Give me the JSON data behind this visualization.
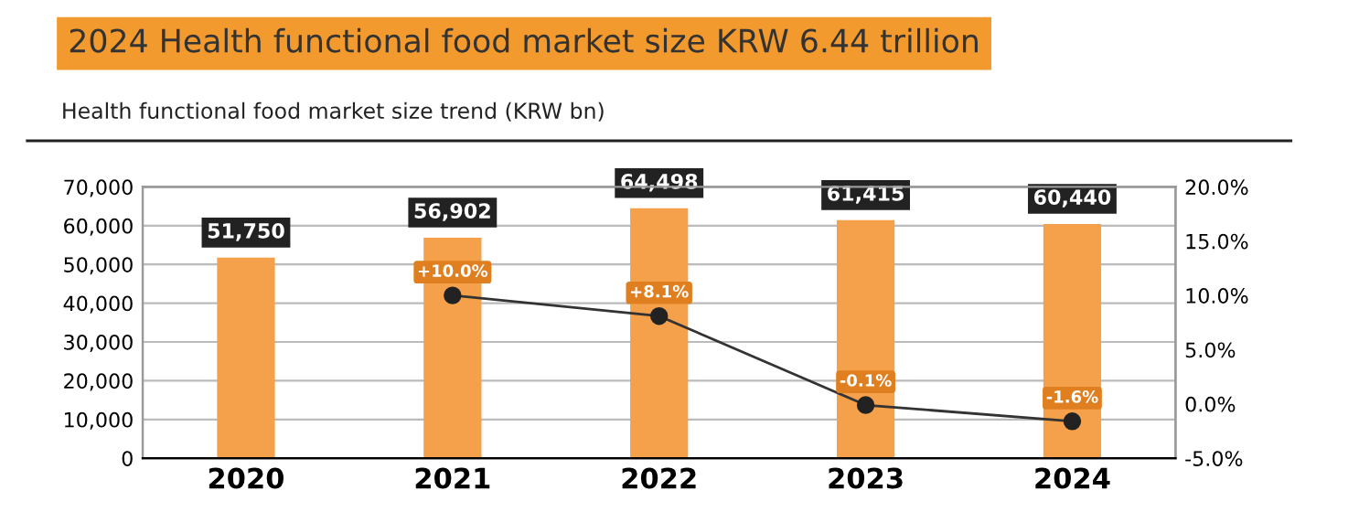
{
  "chart_data": {
    "type": "bar",
    "title": "2024 Health functional food market size KRW 6.44 trillion",
    "subtitle": "Health functional food market size trend (KRW bn)",
    "categories": [
      "2020",
      "2021",
      "2022",
      "2023",
      "2024"
    ],
    "series": [
      {
        "color": "#f5a04a",
        "values": [
          51750,
          56902,
          64498,
          61415,
          60440
        ],
        "value_labels": [
          "51,750",
          "56,902",
          "64,498",
          "61,415",
          "60,440"
        ]
      },
      {
        "type": "line",
        "axis": "y2",
        "color": "#333333",
        "marker": "circle",
        "values": [
          null,
          10.0,
          8.1,
          -0.1,
          -1.6
        ],
        "value_labels": [
          null,
          "+10.0%",
          "+8.1%",
          "-0.1%",
          "-1.6%"
        ]
      }
    ],
    "ylim": [
      0,
      70000
    ],
    "yticks": [
      0,
      {
        "value": 10000,
        "label": "10,000"
      },
      {
        "value": 20000,
        "label": "20,000"
      },
      {
        "value": 30000,
        "label": "30,000"
      },
      {
        "value": 40000,
        "label": "40,000"
      },
      {
        "value": 50000,
        "label": "50,000"
      },
      {
        "value": 60000,
        "label": "60,000"
      },
      {
        "value": 70000,
        "label": "70,000"
      }
    ],
    "y2lim": [
      -5,
      20
    ],
    "y2ticks": [
      {
        "value": -5,
        "label": "-5.0%"
      },
      {
        "value": 0,
        "label": "0.0%"
      },
      {
        "value": 5,
        "label": "5.0%"
      },
      {
        "value": 10,
        "label": "10.0%"
      },
      {
        "value": 15,
        "label": "15.0%"
      },
      {
        "value": 20,
        "label": "20.0%"
      }
    ],
    "grid": "y"
  }
}
